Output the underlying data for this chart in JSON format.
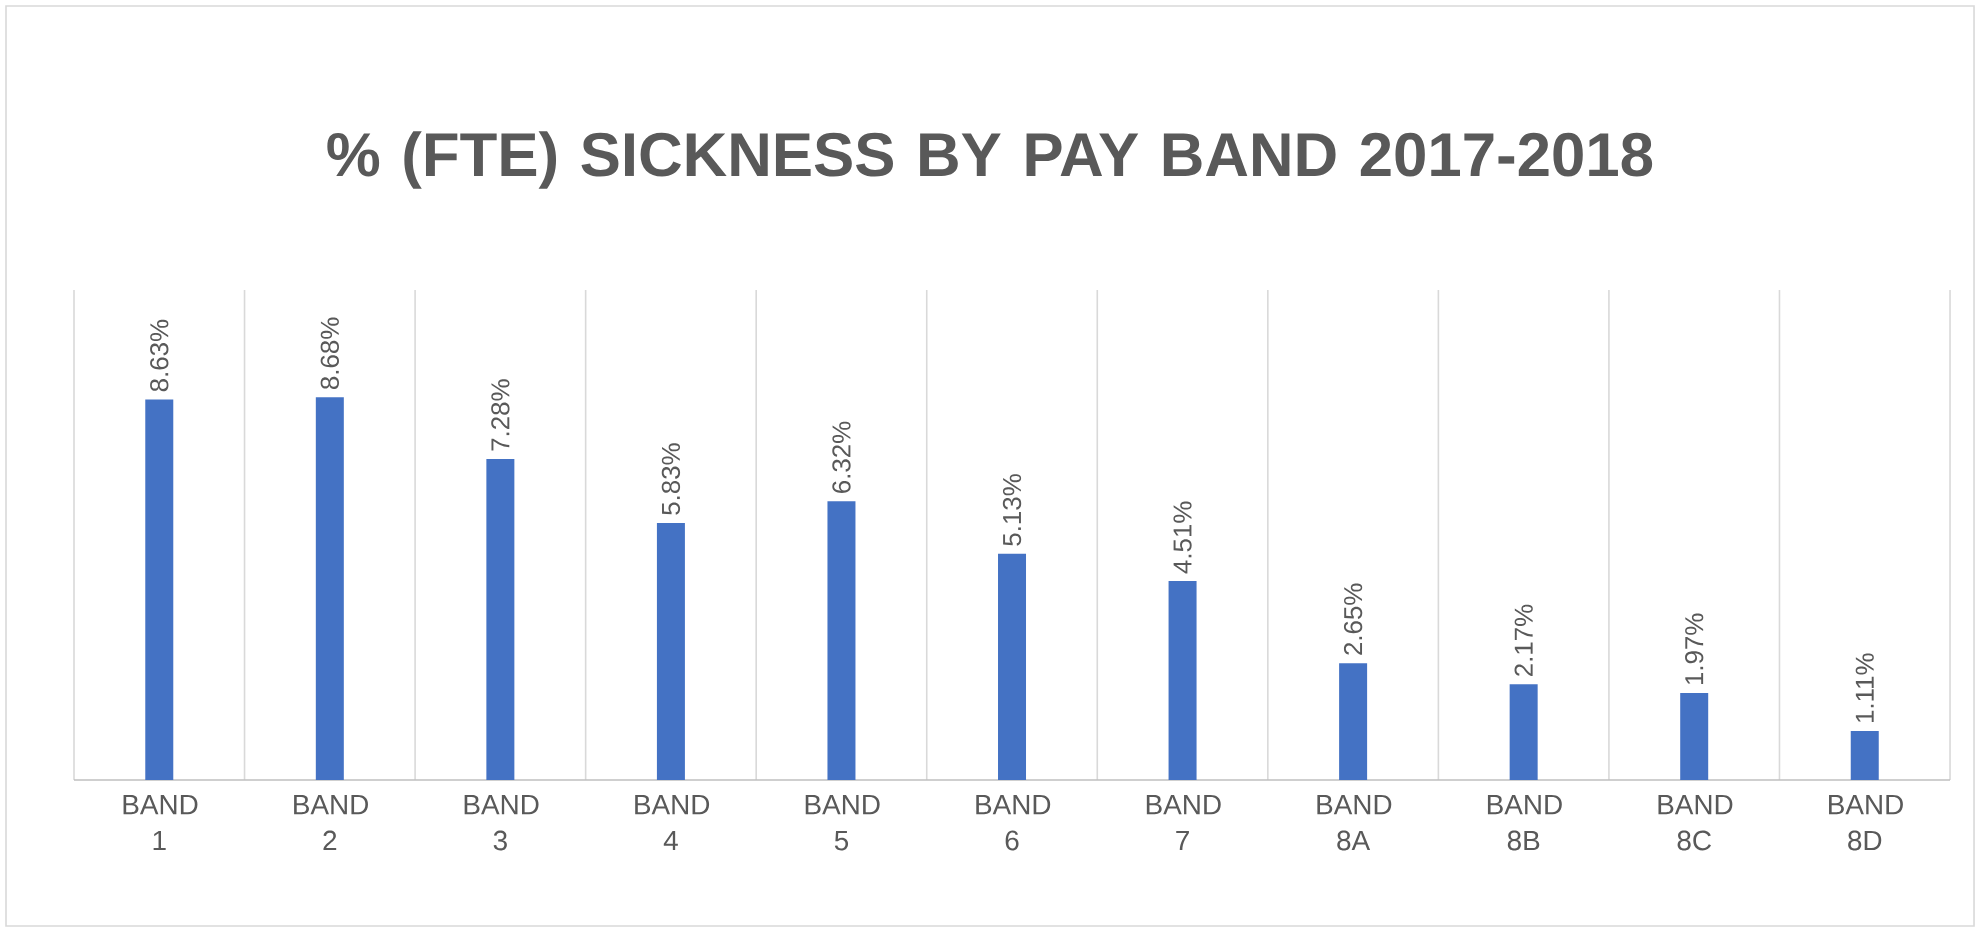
{
  "chart_data": {
    "type": "bar",
    "title": "% (FTE) SICKNESS BY PAY BAND 2017-2018",
    "categories": [
      "BAND 1",
      "BAND 2",
      "BAND 3",
      "BAND 4",
      "BAND 5",
      "BAND 6",
      "BAND 7",
      "BAND 8A",
      "BAND 8B",
      "BAND 8C",
      "BAND 8D"
    ],
    "values": [
      8.63,
      8.68,
      7.28,
      5.83,
      6.32,
      5.13,
      4.51,
      2.65,
      2.17,
      1.97,
      1.11
    ],
    "value_labels": [
      "8.63%",
      "8.68%",
      "7.28%",
      "5.83%",
      "6.32%",
      "5.13%",
      "4.51%",
      "2.65%",
      "2.17%",
      "1.97%",
      "1.11%"
    ],
    "color": "#4472c4",
    "grid": "x",
    "tick_labels": "x"
  }
}
